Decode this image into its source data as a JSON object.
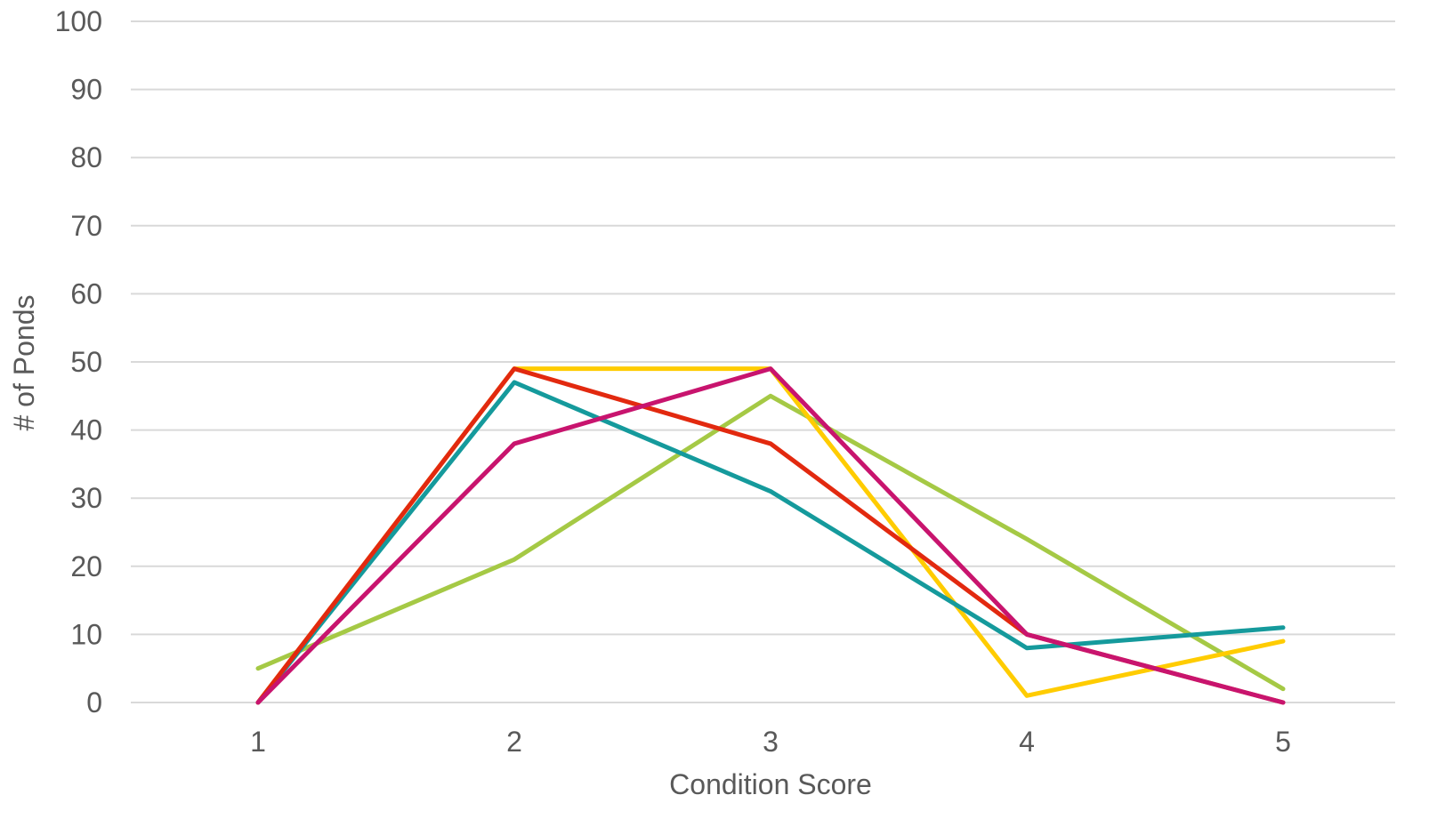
{
  "chart_data": {
    "type": "line",
    "title": "",
    "xlabel": "Condition Score",
    "ylabel": "# of Ponds",
    "categories": [
      "1",
      "2",
      "3",
      "4",
      "5"
    ],
    "ylim": [
      0,
      100
    ],
    "yticks": [
      0,
      10,
      20,
      30,
      40,
      50,
      60,
      70,
      80,
      90,
      100
    ],
    "grid": true,
    "legend": "none",
    "series": [
      {
        "color": "#a5c945",
        "values": [
          5,
          21,
          45,
          24,
          2
        ]
      },
      {
        "color": "#ffcc00",
        "values": [
          0,
          49,
          49,
          1,
          9
        ]
      },
      {
        "color": "#159a9c",
        "values": [
          0,
          47,
          31,
          8,
          11
        ]
      },
      {
        "color": "#e2290f",
        "values": [
          0,
          49,
          38,
          10,
          0
        ]
      },
      {
        "color": "#c8146e",
        "values": [
          0,
          38,
          49,
          10,
          0
        ]
      }
    ]
  }
}
